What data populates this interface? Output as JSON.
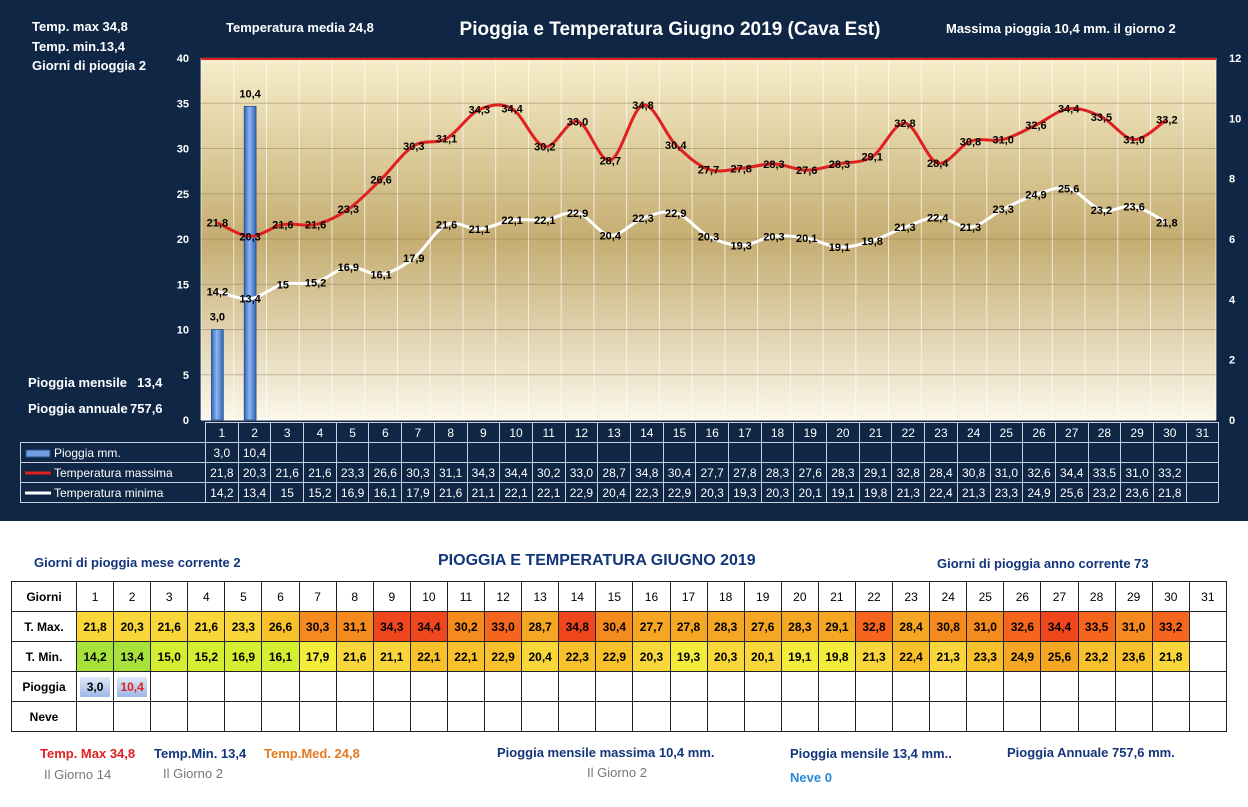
{
  "header": {
    "title": "Pioggia e Temperatura Giugno 2019 (Cava Est)",
    "temp_max": "Temp. max  34,8",
    "temp_min": "Temp.  min.13,4",
    "giorni_pioggia": "Giorni  di pioggia   2",
    "temp_media": "Temperatura media  24,8",
    "massima_pioggia": "Massima pioggia  10,4 mm.  il giorno   2",
    "pioggia_mensile": "Pioggia mensile",
    "pioggia_mensile_val": "13,4",
    "pioggia_annuale": "Pioggia annuale",
    "pioggia_annuale_val": "757,6"
  },
  "chart_data": {
    "type": "line",
    "title": "Pioggia e Temperatura Giugno 2019 (Cava Est)",
    "categories": [
      "1",
      "2",
      "3",
      "4",
      "5",
      "6",
      "7",
      "8",
      "9",
      "10",
      "11",
      "12",
      "13",
      "14",
      "15",
      "16",
      "17",
      "18",
      "19",
      "20",
      "21",
      "22",
      "23",
      "24",
      "25",
      "26",
      "27",
      "28",
      "29",
      "30",
      "31"
    ],
    "left_axis": {
      "min": 0,
      "max": 40,
      "ticks": [
        "0",
        "5",
        "10",
        "15",
        "20",
        "25",
        "30",
        "35",
        "40"
      ]
    },
    "right_axis": {
      "min": 0,
      "max": 12,
      "ticks": [
        "0",
        "2",
        "4",
        "6",
        "8",
        "10",
        "12"
      ]
    },
    "grid": true,
    "series": [
      {
        "name": "Pioggia mm.",
        "type": "bar",
        "axis": "right",
        "color": "#4a86d8",
        "values": [
          3.0,
          10.4,
          null,
          null,
          null,
          null,
          null,
          null,
          null,
          null,
          null,
          null,
          null,
          null,
          null,
          null,
          null,
          null,
          null,
          null,
          null,
          null,
          null,
          null,
          null,
          null,
          null,
          null,
          null,
          null,
          null
        ],
        "labels": [
          "3,0",
          "10,4",
          "",
          "",
          "",
          "",
          "",
          "",
          "",
          "",
          "",
          "",
          "",
          "",
          "",
          "",
          "",
          "",
          "",
          "",
          "",
          "",
          "",
          "",
          "",
          "",
          "",
          "",
          "",
          "",
          ""
        ]
      },
      {
        "name": "Temperatura massima",
        "type": "line",
        "axis": "left",
        "color": "#e02020",
        "values": [
          21.8,
          20.3,
          21.6,
          21.6,
          23.3,
          26.6,
          30.3,
          31.1,
          34.3,
          34.4,
          30.2,
          33.0,
          28.7,
          34.8,
          30.4,
          27.7,
          27.8,
          28.3,
          27.6,
          28.3,
          29.1,
          32.8,
          28.4,
          30.8,
          31.0,
          32.6,
          34.4,
          33.5,
          31.0,
          33.2,
          null
        ],
        "labels": [
          "21,8",
          "20,3",
          "21,6",
          "21,6",
          "23,3",
          "26,6",
          "30,3",
          "31,1",
          "34,3",
          "34,4",
          "30,2",
          "33,0",
          "28,7",
          "34,8",
          "30,4",
          "27,7",
          "27,8",
          "28,3",
          "27,6",
          "28,3",
          "29,1",
          "32,8",
          "28,4",
          "30,8",
          "31,0",
          "32,6",
          "34,4",
          "33,5",
          "31,0",
          "33,2",
          ""
        ]
      },
      {
        "name": "Temperatura minima",
        "type": "line",
        "axis": "left",
        "color": "#ffffff",
        "values": [
          14.2,
          13.4,
          15,
          15.2,
          16.9,
          16.1,
          17.9,
          21.6,
          21.1,
          22.1,
          22.1,
          22.9,
          20.4,
          22.3,
          22.9,
          20.3,
          19.3,
          20.3,
          20.1,
          19.1,
          19.8,
          21.3,
          22.4,
          21.3,
          23.3,
          24.9,
          25.6,
          23.2,
          23.6,
          21.8,
          null
        ],
        "labels": [
          "14,2",
          "13,4",
          "15",
          "15,2",
          "16,9",
          "16,1",
          "17,9",
          "21,6",
          "21,1",
          "22,1",
          "22,1",
          "22,9",
          "20,4",
          "22,3",
          "22,9",
          "20,3",
          "19,3",
          "20,3",
          "20,1",
          "19,1",
          "19,8",
          "21,3",
          "22,4",
          "21,3",
          "23,3",
          "24,9",
          "25,6",
          "23,2",
          "23,6",
          "21,8",
          ""
        ]
      }
    ]
  },
  "data_table": {
    "rows": [
      {
        "label": "Pioggia mm.",
        "cells": [
          "3,0",
          "10,4",
          "",
          "",
          "",
          "",
          "",
          "",
          "",
          "",
          "",
          "",
          "",
          "",
          "",
          "",
          "",
          "",
          "",
          "",
          "",
          "",
          "",
          "",
          "",
          "",
          "",
          "",
          "",
          "",
          ""
        ]
      },
      {
        "label": "Temperatura massima",
        "cells": [
          "21,8",
          "20,3",
          "21,6",
          "21,6",
          "23,3",
          "26,6",
          "30,3",
          "31,1",
          "34,3",
          "34,4",
          "30,2",
          "33,0",
          "28,7",
          "34,8",
          "30,4",
          "27,7",
          "27,8",
          "28,3",
          "27,6",
          "28,3",
          "29,1",
          "32,8",
          "28,4",
          "30,8",
          "31,0",
          "32,6",
          "34,4",
          "33,5",
          "31,0",
          "33,2",
          ""
        ]
      },
      {
        "label": "Temperatura minima",
        "cells": [
          "14,2",
          "13,4",
          "15",
          "15,2",
          "16,9",
          "16,1",
          "17,9",
          "21,6",
          "21,1",
          "22,1",
          "22,1",
          "22,9",
          "20,4",
          "22,3",
          "22,9",
          "20,3",
          "19,3",
          "20,3",
          "20,1",
          "19,1",
          "19,8",
          "21,3",
          "22,4",
          "21,3",
          "23,3",
          "24,9",
          "25,6",
          "23,2",
          "23,6",
          "21,8",
          ""
        ]
      }
    ]
  },
  "bottom": {
    "title": "PIOGGIA E TEMPERATURA GIUGNO 2019",
    "giorni_mese": "Giorni di pioggia mese corrente   2",
    "giorni_anno": "Giorni di pioggia anno corrente  73",
    "table": {
      "header_label": "Giorni",
      "days": [
        "1",
        "2",
        "3",
        "4",
        "5",
        "6",
        "7",
        "8",
        "9",
        "10",
        "11",
        "12",
        "13",
        "14",
        "15",
        "16",
        "17",
        "18",
        "19",
        "20",
        "21",
        "22",
        "23",
        "24",
        "25",
        "26",
        "27",
        "28",
        "29",
        "30",
        "31"
      ],
      "tmax_label": "T. Max.",
      "tmin_label": "T. Min.",
      "pioggia_label": "Pioggia",
      "neve_label": "Neve",
      "tmax": [
        "21,8",
        "20,3",
        "21,6",
        "21,6",
        "23,3",
        "26,6",
        "30,3",
        "31,1",
        "34,3",
        "34,4",
        "30,2",
        "33,0",
        "28,7",
        "34,8",
        "30,4",
        "27,7",
        "27,8",
        "28,3",
        "27,6",
        "28,3",
        "29,1",
        "32,8",
        "28,4",
        "30,8",
        "31,0",
        "32,6",
        "34,4",
        "33,5",
        "31,0",
        "33,2",
        ""
      ],
      "tmin": [
        "14,2",
        "13,4",
        "15,0",
        "15,2",
        "16,9",
        "16,1",
        "17,9",
        "21,6",
        "21,1",
        "22,1",
        "22,1",
        "22,9",
        "20,4",
        "22,3",
        "22,9",
        "20,3",
        "19,3",
        "20,3",
        "20,1",
        "19,1",
        "19,8",
        "21,3",
        "22,4",
        "21,3",
        "23,3",
        "24,9",
        "25,6",
        "23,2",
        "23,6",
        "21,8",
        ""
      ],
      "pioggia": [
        "3,0",
        "10,4",
        "",
        "",
        "",
        "",
        "",
        "",
        "",
        "",
        "",
        "",
        "",
        "",
        "",
        "",
        "",
        "",
        "",
        "",
        "",
        "",
        "",
        "",
        "",
        "",
        "",
        "",
        "",
        "",
        ""
      ]
    },
    "footer": {
      "temp_max": "Temp. Max 34,8",
      "temp_max_giorno": "Il Giorno  14",
      "temp_min": "Temp.Min. 13,4",
      "temp_min_giorno": "Il Giorno 2",
      "temp_med": "Temp.Med. 24,8",
      "pioggia_max": "Pioggia mensile massima 10,4  mm.",
      "pioggia_max_giorno": "Il Giorno  2",
      "pioggia_mensile": "Pioggia mensile 13,4  mm..",
      "pioggia_annuale": "Pioggia Annuale 757,6  mm.",
      "neve": "Neve 0"
    }
  }
}
